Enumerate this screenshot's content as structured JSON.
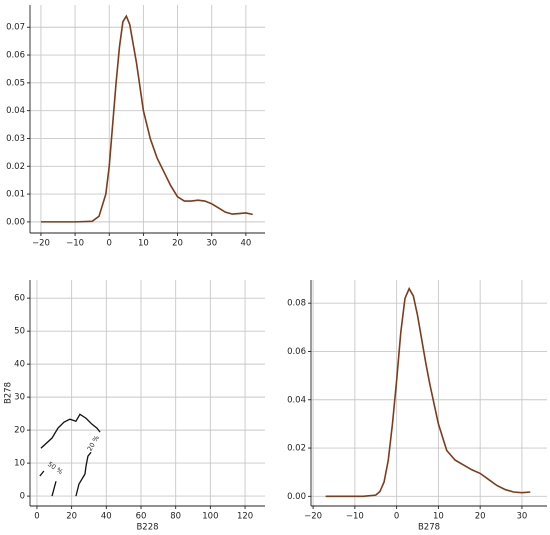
{
  "chart_data": [
    {
      "type": "line",
      "grid": true,
      "x": [
        -20,
        -10,
        -5,
        -3,
        -1,
        0,
        1,
        2,
        3,
        4,
        5,
        6,
        8,
        10,
        12,
        14,
        16,
        18,
        20,
        22,
        24,
        26,
        28,
        30,
        32,
        34,
        36,
        38,
        40,
        42
      ],
      "series": [
        {
          "color": "#7f3b1a",
          "values": [
            0,
            0,
            0.0002,
            0.002,
            0.01,
            0.02,
            0.035,
            0.05,
            0.063,
            0.072,
            0.074,
            0.071,
            0.057,
            0.04,
            0.03,
            0.023,
            0.018,
            0.013,
            0.009,
            0.0075,
            0.0075,
            0.0078,
            0.0075,
            0.0065,
            0.005,
            0.0035,
            0.0028,
            0.003,
            0.0032,
            0.0027
          ]
        }
      ],
      "xlim": [
        -23.2,
        45.6
      ],
      "ylim": [
        -0.004,
        0.078
      ],
      "xticks": [
        {
          "value": -20,
          "label": "−20"
        },
        {
          "value": -10,
          "label": "−10"
        },
        0,
        10,
        20,
        30,
        40
      ],
      "yticks": [
        {
          "value": 0,
          "label": "0.00"
        },
        {
          "value": 0.01,
          "label": "0.01"
        },
        {
          "value": 0.02,
          "label": "0.02"
        },
        {
          "value": 0.03,
          "label": "0.03"
        },
        {
          "value": 0.04,
          "label": "0.04"
        },
        {
          "value": 0.05,
          "label": "0.05"
        },
        {
          "value": 0.06,
          "label": "0.06"
        },
        {
          "value": 0.07,
          "label": "0.07"
        }
      ]
    },
    {
      "type": "contour",
      "grid": true,
      "x_label": "B228",
      "y_label": "B278",
      "series": [
        {
          "color": "#111111",
          "x": [
            2.3,
            8.7,
            12.1,
            15.6,
            19.0,
            22.5,
            24.8,
            28.3,
            31.7,
            34.6,
            36.4
          ],
          "values": [
            14.5,
            17.6,
            20.6,
            22.4,
            23.3,
            22.7,
            24.8,
            23.6,
            21.8,
            20.6,
            19.4
          ]
        },
        {
          "color": "#111111",
          "x": [
            22.5,
            24.2,
            27.7,
            28.3,
            29.4,
            31.2
          ],
          "values": [
            0,
            3.6,
            6.7,
            9.1,
            12.1,
            13.3
          ]
        },
        {
          "color": "#111111",
          "x": [
            8.7,
            11.0
          ],
          "values": [
            0,
            4.5
          ]
        },
        {
          "color": "#111111",
          "x": [
            1.7,
            4.0
          ],
          "values": [
            6.1,
            7.6
          ]
        }
      ],
      "annotations": [
        {
          "text": "50 %",
          "x": 10.5,
          "y": 8.5
        },
        {
          "text": "20 %",
          "x": 32.5,
          "y": 16
        }
      ],
      "xlim": [
        -4,
        131.5
      ],
      "ylim": [
        -3,
        65.5
      ],
      "xticks": [
        0,
        20,
        40,
        60,
        80,
        100,
        120
      ],
      "yticks": [
        0,
        10,
        20,
        30,
        40,
        50,
        60
      ]
    },
    {
      "type": "line",
      "grid": true,
      "x_label": "B278",
      "x": [
        -17,
        -8,
        -5,
        -4,
        -3,
        -2,
        -1,
        0,
        1,
        2,
        3,
        4,
        5,
        6,
        7,
        8,
        10,
        12,
        14,
        16,
        18,
        20,
        22,
        24,
        26,
        28,
        30,
        32
      ],
      "series": [
        {
          "color": "#7f3b1a",
          "values": [
            0,
            0,
            0.0005,
            0.002,
            0.006,
            0.015,
            0.03,
            0.048,
            0.068,
            0.082,
            0.086,
            0.083,
            0.075,
            0.065,
            0.055,
            0.046,
            0.03,
            0.019,
            0.015,
            0.013,
            0.011,
            0.0095,
            0.007,
            0.0045,
            0.0028,
            0.0018,
            0.0015,
            0.0018
          ]
        }
      ],
      "xlim": [
        -20.5,
        36
      ],
      "ylim": [
        -0.004,
        0.0896
      ],
      "xticks": [
        {
          "value": -20,
          "label": "−20"
        },
        {
          "value": -10,
          "label": "−10"
        },
        0,
        10,
        20,
        30
      ],
      "yticks": [
        {
          "value": 0,
          "label": "0.00"
        },
        {
          "value": 0.02,
          "label": "0.02"
        },
        {
          "value": 0.04,
          "label": "0.04"
        },
        {
          "value": 0.06,
          "label": "0.06"
        },
        {
          "value": 0.08,
          "label": "0.08"
        }
      ]
    }
  ]
}
